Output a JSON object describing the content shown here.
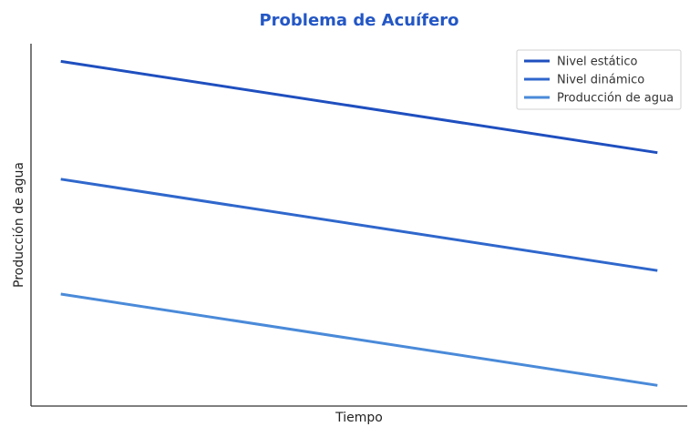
{
  "chart_data": {
    "type": "line",
    "title": "Problema de Acuífero",
    "xlabel": "Tiempo",
    "ylabel": "Producción de agua",
    "x": [
      0,
      1
    ],
    "xlim": [
      -0.05,
      1.05
    ],
    "ylim": [
      0,
      1.23
    ],
    "grid": false,
    "legend_position": "top-right",
    "title_color": "#2457c5",
    "series": [
      {
        "name": "Nivel estático",
        "color": "#1f4fbf",
        "values": [
          1.17,
          0.86
        ]
      },
      {
        "name": "Nivel dinámico",
        "color": "#2f67cc",
        "values": [
          0.77,
          0.46
        ]
      },
      {
        "name": "Producción de agua",
        "color": "#4a8ad9",
        "values": [
          0.38,
          0.07
        ]
      }
    ]
  }
}
